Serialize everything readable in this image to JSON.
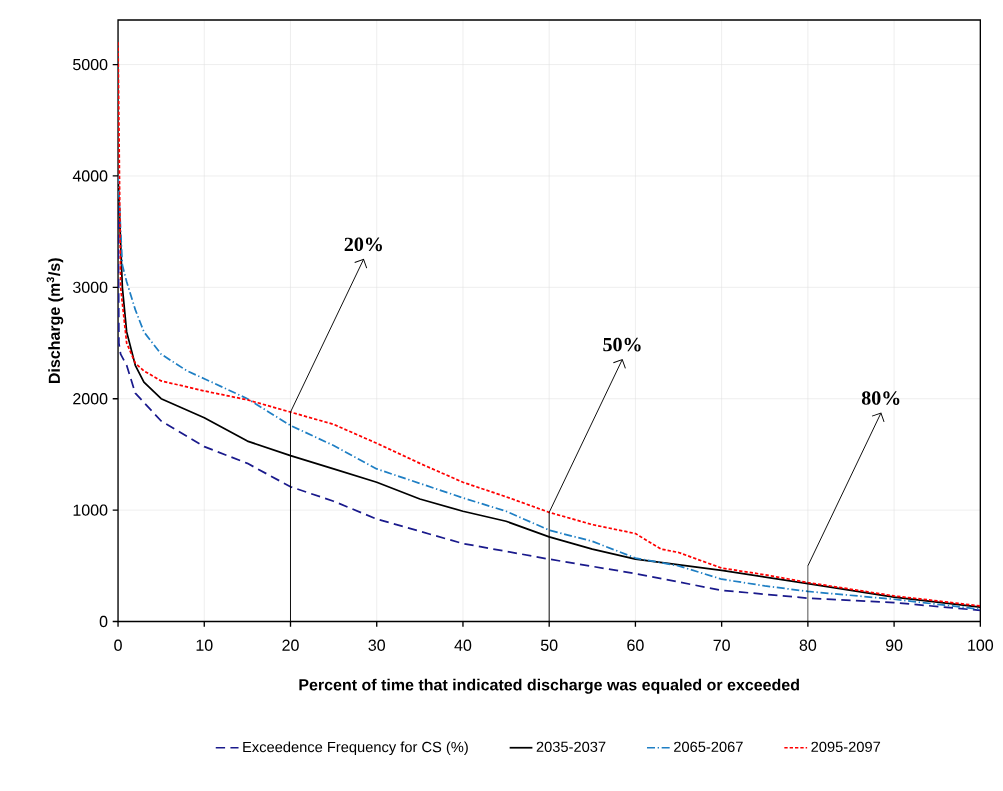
{
  "chart_data": {
    "type": "line",
    "xlabel": "Percent of time that indicated discharge was equaled or exceeded",
    "ylabel": "Discharge (m$^{3}$/s)",
    "xlim": [
      0,
      100
    ],
    "xticks": [
      0,
      10,
      20,
      30,
      40,
      50,
      60,
      70,
      80,
      90,
      100
    ],
    "ylim": [
      0,
      5400
    ],
    "yticks": [
      0,
      1000,
      2000,
      3000,
      4000,
      5000
    ],
    "grid": true,
    "legend": "bottom",
    "marker": "none",
    "series": [
      {
        "name": "Exceedence Frequency for CS (%)",
        "color": "#1a1a8c",
        "line_style": "dashed",
        "x": [
          0,
          0.1,
          0.3,
          1,
          2,
          5,
          10,
          15,
          20,
          25,
          30,
          40,
          50,
          60,
          70,
          80,
          90,
          100
        ],
        "values": [
          4000,
          2500,
          2400,
          2300,
          2050,
          1800,
          1570,
          1420,
          1210,
          1080,
          920,
          700,
          560,
          430,
          280,
          210,
          170,
          100
        ]
      },
      {
        "name": "2035-2037",
        "color": "#000000",
        "line_style": "solid",
        "x": [
          0,
          0.5,
          1,
          2,
          3,
          5,
          10,
          15,
          20,
          25,
          30,
          35,
          40,
          45,
          50,
          55,
          60,
          70,
          80,
          90,
          100
        ],
        "values": [
          4000,
          3000,
          2600,
          2300,
          2150,
          2000,
          1830,
          1620,
          1490,
          1370,
          1250,
          1100,
          990,
          900,
          760,
          650,
          560,
          460,
          340,
          220,
          130
        ]
      },
      {
        "name": "2065-2067",
        "color": "#1f7fc4",
        "line_style": "dashdot",
        "x": [
          0,
          0.5,
          1,
          2,
          3,
          5,
          8,
          10,
          15,
          20,
          25,
          30,
          35,
          40,
          45,
          50,
          55,
          60,
          65,
          70,
          75,
          80,
          90,
          100
        ],
        "values": [
          4000,
          3200,
          3050,
          2800,
          2600,
          2400,
          2250,
          2180,
          2000,
          1760,
          1580,
          1370,
          1240,
          1110,
          990,
          820,
          720,
          570,
          500,
          380,
          320,
          270,
          200,
          110
        ]
      },
      {
        "name": "2095-2097",
        "color": "#ff0000",
        "line_style": "dotted",
        "x": [
          0,
          0.3,
          1,
          2,
          3,
          5,
          10,
          15,
          20,
          25,
          30,
          35,
          40,
          45,
          50,
          55,
          60,
          63,
          65,
          70,
          75,
          80,
          90,
          100
        ],
        "values": [
          5200,
          3000,
          2500,
          2320,
          2250,
          2160,
          2070,
          1990,
          1880,
          1770,
          1600,
          1420,
          1250,
          1120,
          980,
          870,
          790,
          650,
          620,
          480,
          420,
          350,
          230,
          140
        ]
      }
    ],
    "ref_lines": [
      {
        "axis": "x",
        "value": 20,
        "color": "#000000"
      },
      {
        "axis": "x",
        "value": 50,
        "color": "#000000"
      },
      {
        "axis": "x",
        "value": 80,
        "color": "#000000"
      }
    ],
    "annotations": [
      {
        "text": "20%",
        "x": 20,
        "y": 1880
      },
      {
        "text": "50%",
        "x": 50,
        "y": 980
      },
      {
        "text": "80%",
        "x": 80,
        "y": 500
      }
    ]
  }
}
